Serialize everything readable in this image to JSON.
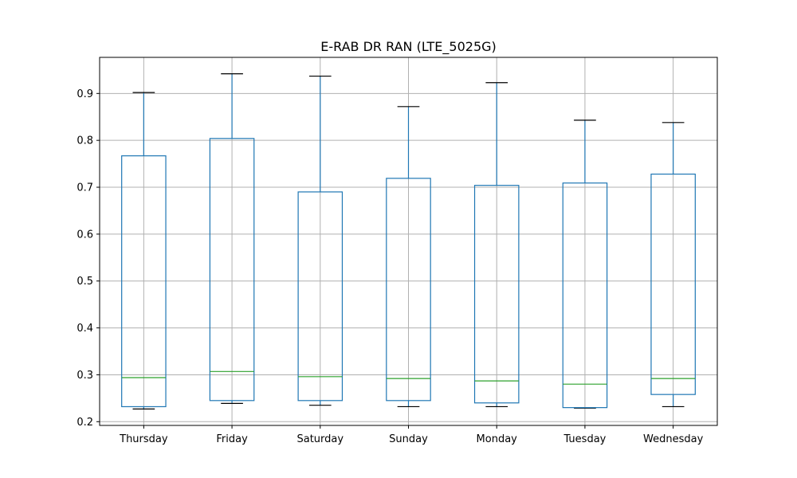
{
  "chart_data": {
    "type": "boxplot",
    "title": "E-RAB DR RAN (LTE_5025G)",
    "xlabel": "",
    "ylabel": "",
    "categories": [
      "Thursday",
      "Friday",
      "Saturday",
      "Sunday",
      "Monday",
      "Tuesday",
      "Wednesday"
    ],
    "boxes": [
      {
        "category": "Thursday",
        "whisker_low": 0.227,
        "q1": 0.232,
        "median": 0.294,
        "q3": 0.767,
        "whisker_high": 0.902
      },
      {
        "category": "Friday",
        "whisker_low": 0.239,
        "q1": 0.245,
        "median": 0.307,
        "q3": 0.804,
        "whisker_high": 0.942
      },
      {
        "category": "Saturday",
        "whisker_low": 0.235,
        "q1": 0.245,
        "median": 0.296,
        "q3": 0.69,
        "whisker_high": 0.937
      },
      {
        "category": "Sunday",
        "whisker_low": 0.232,
        "q1": 0.245,
        "median": 0.292,
        "q3": 0.719,
        "whisker_high": 0.872
      },
      {
        "category": "Monday",
        "whisker_low": 0.232,
        "q1": 0.24,
        "median": 0.287,
        "q3": 0.704,
        "whisker_high": 0.923
      },
      {
        "category": "Tuesday",
        "whisker_low": 0.229,
        "q1": 0.23,
        "median": 0.28,
        "q3": 0.709,
        "whisker_high": 0.843
      },
      {
        "category": "Wednesday",
        "whisker_low": 0.232,
        "q1": 0.258,
        "median": 0.292,
        "q3": 0.728,
        "whisker_high": 0.838
      }
    ],
    "yticks": [
      0.2,
      0.3,
      0.4,
      0.5,
      0.6,
      0.7,
      0.8,
      0.9
    ],
    "ytick_labels": [
      "0.2",
      "0.3",
      "0.4",
      "0.5",
      "0.6",
      "0.7",
      "0.8",
      "0.9"
    ],
    "ylim": [
      0.192,
      0.977
    ],
    "grid": true,
    "colors": {
      "box": "#1f77b4",
      "median": "#2ca02c",
      "cap": "#000000",
      "grid": "#b0b0b0",
      "axes": "#000000"
    }
  }
}
